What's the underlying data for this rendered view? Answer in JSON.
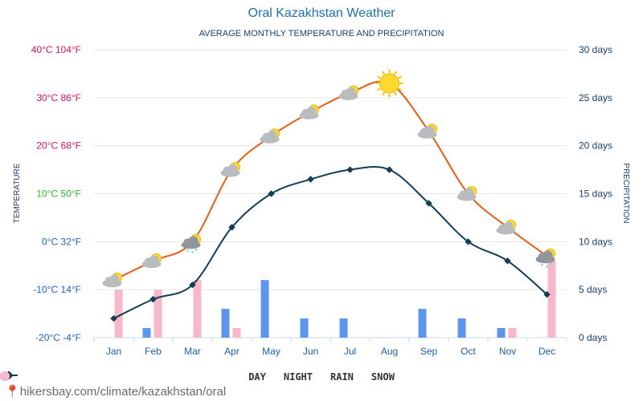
{
  "header": {
    "title": "Oral Kazakhstan Weather",
    "subtitle": "AVERAGE MONTHLY TEMPERATURE AND PRECIPITATION"
  },
  "colors": {
    "day": "#ee5b12",
    "night": "#123f55",
    "rain": "#5b95ef",
    "snow": "#f9b8c8",
    "grid": "#e6e6e6",
    "left_axis_label": "#1d3f6e",
    "right_axis": "#1d3f6e"
  },
  "legend": {
    "day": "DAY",
    "night": "NIGHT",
    "rain": "RAIN",
    "snow": "SNOW"
  },
  "footer": {
    "url": "hikersbay.com/climate/kazakhstan/oral"
  },
  "chart_data": {
    "type": "line",
    "title": "Oral Kazakhstan Weather",
    "subtitle": "AVERAGE MONTHLY TEMPERATURE AND PRECIPITATION",
    "ylabel": "TEMPERATURE",
    "y2label": "PRECIPITATION",
    "categories": [
      "Jan",
      "Feb",
      "Mar",
      "Apr",
      "May",
      "Jun",
      "Jul",
      "Aug",
      "Sep",
      "Oct",
      "Nov",
      "Dec"
    ],
    "ylim": [
      -20,
      40
    ],
    "y2lim": [
      0,
      30
    ],
    "left_ticks": [
      {
        "value": 40,
        "label": "40°C 104°F",
        "color": "#e0115f"
      },
      {
        "value": 30,
        "label": "30°C 86°F",
        "color": "#e0115f"
      },
      {
        "value": 20,
        "label": "20°C 68°F",
        "color": "#e0115f"
      },
      {
        "value": 10,
        "label": "10°C 50°F",
        "color": "#33b233"
      },
      {
        "value": 0,
        "label": "0°C 32°F",
        "color": "#1f5fcc"
      },
      {
        "value": -10,
        "label": "-10°C 14°F",
        "color": "#1f5fcc"
      },
      {
        "value": -20,
        "label": "-20°C -4°F",
        "color": "#1f5fcc"
      }
    ],
    "right_ticks": [
      {
        "value": 30,
        "label": "30 days"
      },
      {
        "value": 25,
        "label": "25 days"
      },
      {
        "value": 20,
        "label": "20 days"
      },
      {
        "value": 15,
        "label": "15 days"
      },
      {
        "value": 10,
        "label": "10 days"
      },
      {
        "value": 5,
        "label": "5 days"
      },
      {
        "value": 0,
        "label": "0 days"
      }
    ],
    "series": [
      {
        "name": "DAY",
        "unit": "°C",
        "values": [
          -8,
          -4,
          0,
          15,
          22,
          27,
          31,
          33,
          23,
          10,
          3,
          -3
        ]
      },
      {
        "name": "NIGHT",
        "unit": "°C",
        "values": [
          -16,
          -12,
          -9,
          3,
          10,
          13,
          15,
          15,
          8,
          0,
          -4,
          -11
        ]
      },
      {
        "name": "RAIN",
        "unit": "days",
        "values": [
          0,
          1,
          0,
          3,
          6,
          2,
          2,
          0,
          3,
          2,
          1,
          0
        ]
      },
      {
        "name": "SNOW",
        "unit": "days",
        "values": [
          5,
          5,
          6,
          1,
          0,
          0,
          0,
          0,
          0,
          0,
          1,
          8
        ]
      }
    ],
    "weather_icons": [
      "partly-cloudy-icon",
      "partly-cloudy-icon",
      "cloud-snow-sun-icon",
      "partly-cloudy-icon",
      "partly-cloudy-icon",
      "partly-cloudy-icon",
      "partly-cloudy-icon",
      "sun-icon",
      "partly-cloudy-icon",
      "partly-cloudy-icon",
      "partly-cloudy-icon",
      "cloud-snow-sun-icon"
    ]
  }
}
